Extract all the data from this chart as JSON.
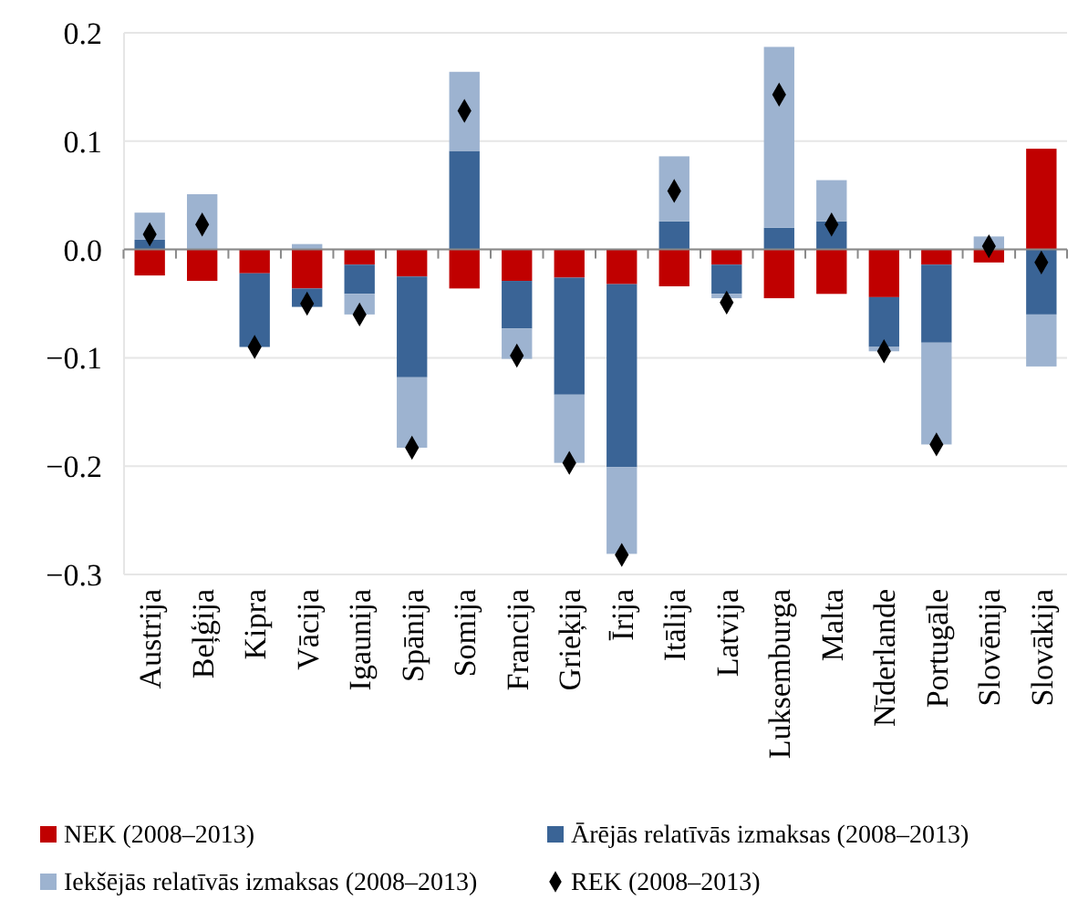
{
  "chart_data": {
    "type": "bar",
    "stacked": true,
    "categories": [
      "Austrija",
      "Beļģija",
      "Kipra",
      "Vācija",
      "Igaunija",
      "Spānija",
      "Somija",
      "Francija",
      "Grieķija",
      "Īrija",
      "Itālija",
      "Latvija",
      "Luksemburga",
      "Malta",
      "Nīderlande",
      "Portugāle",
      "Slovēnija",
      "Slovākija"
    ],
    "series": [
      {
        "name": "NEK (2008–2013)",
        "color": "#c00000",
        "values": [
          -0.024,
          -0.029,
          -0.022,
          -0.036,
          -0.014,
          -0.025,
          -0.036,
          -0.029,
          -0.026,
          -0.032,
          -0.034,
          -0.014,
          -0.045,
          -0.041,
          -0.044,
          -0.014,
          -0.012,
          0.093
        ]
      },
      {
        "name": "Ārējās relatīvās izmaksas (2008–2013)",
        "color": "#3a6496",
        "values": [
          0.009,
          0,
          -0.068,
          -0.017,
          -0.027,
          -0.093,
          0.091,
          -0.044,
          -0.108,
          -0.169,
          0.026,
          -0.027,
          0.02,
          0.026,
          -0.046,
          -0.072,
          0,
          -0.06
        ]
      },
      {
        "name": "Iekšējās relatīvās izmaksas (2008–2013)",
        "color": "#9db3d0",
        "values": [
          0.025,
          0.051,
          0,
          0.005,
          -0.019,
          -0.065,
          0.073,
          -0.028,
          -0.063,
          -0.08,
          0.06,
          -0.004,
          0.167,
          0.038,
          -0.004,
          -0.094,
          0.012,
          -0.048
        ]
      },
      {
        "name": "REK (2008–2013)",
        "type": "scatter",
        "marker": "diamond",
        "color": "#000000",
        "values": [
          0.014,
          0.023,
          -0.09,
          -0.05,
          -0.06,
          -0.183,
          0.128,
          -0.098,
          -0.197,
          -0.282,
          0.054,
          -0.049,
          0.143,
          0.023,
          -0.094,
          -0.18,
          0.003,
          -0.012
        ]
      }
    ],
    "ylim": [
      -0.3,
      0.2
    ],
    "yticks": [
      {
        "value": -0.3,
        "label": "−0.3"
      },
      {
        "value": -0.2,
        "label": "−0.2"
      },
      {
        "value": -0.1,
        "label": "−0.1"
      },
      {
        "value": 0,
        "label": "0.0"
      },
      {
        "value": 0.1,
        "label": "0.1"
      },
      {
        "value": 0.2,
        "label": "0.2"
      }
    ],
    "grid": "y",
    "legend": "bottom"
  }
}
